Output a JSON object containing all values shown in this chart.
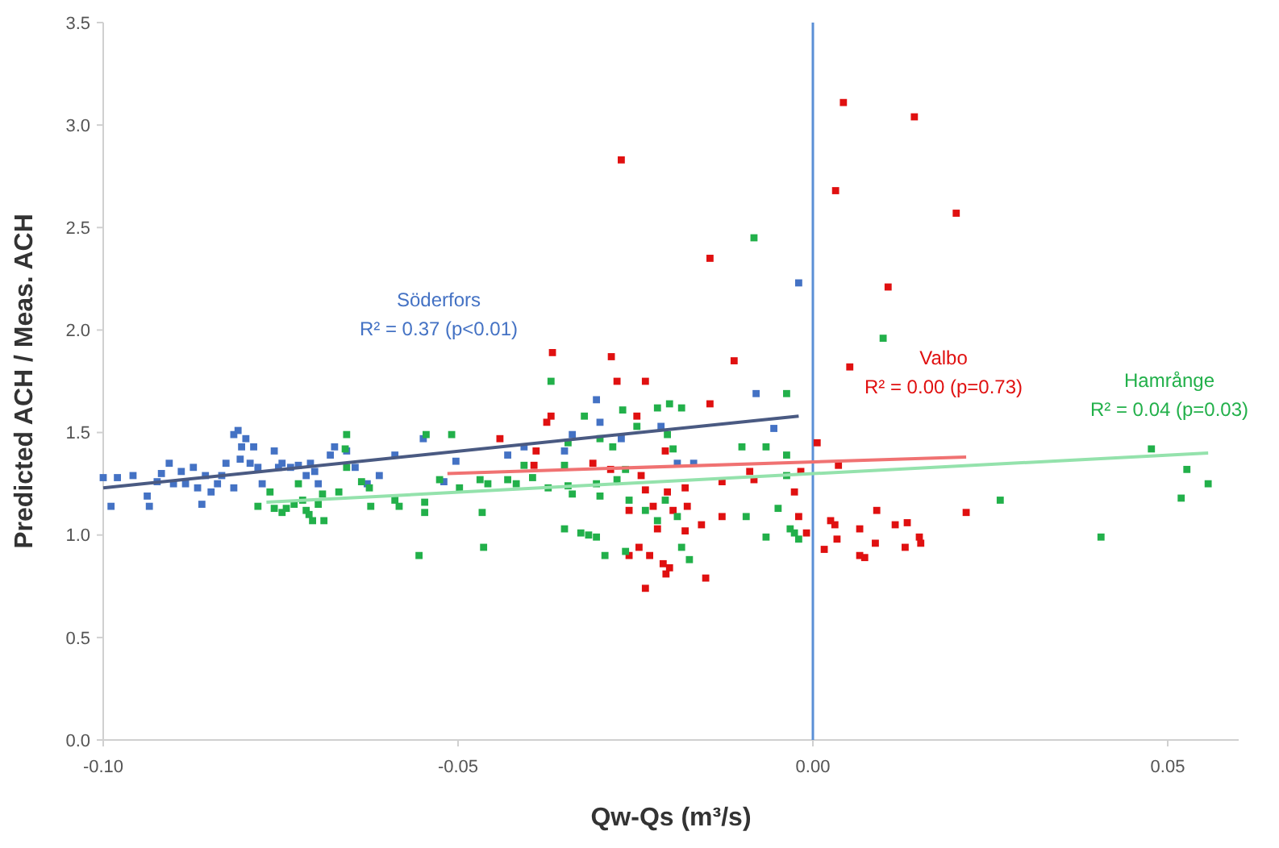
{
  "chart_data": {
    "type": "scatter",
    "xlabel": "Qw-Qs (m³/s)",
    "ylabel": "Predicted ACH / Meas. ACH",
    "xlim": [
      -0.1,
      0.06
    ],
    "ylim": [
      0,
      3.5
    ],
    "xticks": [
      {
        "value": -0.1,
        "label": "-0.10"
      },
      -0.05,
      {
        "value": 0,
        "label": "0.00"
      },
      0.05
    ],
    "yticks": [
      {
        "value": 0,
        "label": "0.0"
      },
      0.5,
      {
        "value": 1,
        "label": "1.0"
      },
      1.5,
      {
        "value": 2,
        "label": "2.0"
      },
      2.5,
      {
        "value": 3,
        "label": "3.0"
      },
      3.5
    ],
    "marker": "square",
    "ref_lines": [
      {
        "axis": "x",
        "value": 0,
        "color": "#5b8fd6"
      }
    ],
    "annotations": [
      "R² = 0.37 (p<0.01)",
      "R² = 0.00 (p=0.73)",
      "R² = 0.04 (p=0.03)"
    ],
    "series": [
      {
        "name": "Söderfors",
        "color": "#4472c4",
        "x": [
          -0.1,
          -0.098,
          -0.0989,
          -0.0958,
          -0.0938,
          -0.0935,
          -0.0924,
          -0.0918,
          -0.0907,
          -0.0901,
          -0.089,
          -0.0884,
          -0.0873,
          -0.0867,
          -0.0861,
          -0.0856,
          -0.0848,
          -0.0839,
          -0.0833,
          -0.0827,
          -0.0816,
          -0.081,
          -0.0805,
          -0.0799,
          -0.0807,
          -0.0793,
          -0.0788,
          -0.0782,
          -0.0776,
          -0.0816,
          -0.0759,
          -0.0753,
          -0.0748,
          -0.0736,
          -0.0725,
          -0.0714,
          -0.0708,
          -0.0702,
          -0.0697,
          -0.068,
          -0.0674,
          -0.0657,
          -0.0645,
          -0.0628,
          -0.0611,
          -0.0589,
          -0.0549,
          -0.052,
          -0.0503,
          -0.043,
          -0.0407,
          -0.035,
          -0.0339,
          -0.0305,
          -0.03,
          -0.027,
          -0.0214,
          -0.0191,
          -0.0168,
          -0.008,
          -0.0055,
          -0.002
        ],
        "values": [
          1.28,
          1.28,
          1.14,
          1.29,
          1.19,
          1.14,
          1.26,
          1.3,
          1.35,
          1.25,
          1.31,
          1.25,
          1.33,
          1.23,
          1.15,
          1.29,
          1.21,
          1.25,
          1.29,
          1.35,
          1.49,
          1.51,
          1.43,
          1.47,
          1.37,
          1.35,
          1.43,
          1.33,
          1.25,
          1.23,
          1.41,
          1.33,
          1.35,
          1.33,
          1.34,
          1.29,
          1.35,
          1.31,
          1.25,
          1.39,
          1.43,
          1.41,
          1.33,
          1.25,
          1.29,
          1.39,
          1.47,
          1.26,
          1.36,
          1.39,
          1.43,
          1.41,
          1.49,
          1.66,
          1.55,
          1.47,
          1.53,
          1.35,
          1.35,
          1.69,
          1.52,
          2.23
        ]
      },
      {
        "name": "Valbo",
        "color": "#e01010",
        "x": [
          -0.027,
          -0.0145,
          -0.0111,
          0.0043,
          0.0143,
          0.0032,
          0.0202,
          0.0106,
          0.0052,
          -0.0367,
          -0.0284,
          -0.0276,
          -0.0236,
          -0.0369,
          -0.0375,
          -0.0441,
          -0.039,
          -0.0393,
          -0.031,
          -0.0285,
          -0.0248,
          -0.0242,
          -0.0236,
          -0.0208,
          -0.0205,
          -0.018,
          -0.0145,
          -0.0128,
          -0.0089,
          -0.0083,
          -0.0026,
          0.0006,
          0.0036,
          -0.0259,
          -0.0225,
          -0.0219,
          -0.0197,
          -0.0177,
          -0.018,
          -0.0157,
          -0.0128,
          -0.0259,
          -0.0245,
          -0.023,
          -0.0211,
          -0.0207,
          -0.0202,
          -0.0236,
          -0.0151,
          -0.002,
          -0.0009,
          0.0025,
          0.0031,
          0.0016,
          0.0034,
          0.0066,
          0.0066,
          0.0073,
          0.0088,
          0.009,
          0.0116,
          0.0133,
          0.013,
          0.015,
          0.0152,
          0.0216,
          -0.0017
        ],
        "values": [
          2.83,
          2.35,
          1.85,
          3.11,
          3.04,
          2.68,
          2.57,
          2.21,
          1.82,
          1.89,
          1.87,
          1.75,
          1.75,
          1.58,
          1.55,
          1.47,
          1.41,
          1.34,
          1.35,
          1.32,
          1.58,
          1.29,
          1.22,
          1.41,
          1.21,
          1.23,
          1.64,
          1.26,
          1.31,
          1.27,
          1.21,
          1.45,
          1.34,
          1.12,
          1.14,
          1.03,
          1.12,
          1.14,
          1.02,
          1.05,
          1.09,
          0.9,
          0.94,
          0.9,
          0.86,
          0.81,
          0.84,
          0.74,
          0.79,
          1.09,
          1.01,
          1.07,
          1.05,
          0.93,
          0.98,
          1.03,
          0.9,
          0.89,
          0.96,
          1.12,
          1.05,
          1.06,
          0.94,
          0.99,
          0.96,
          1.11,
          1.31
        ]
      },
      {
        "name": "Hamrånge",
        "color": "#22b04a",
        "x": [
          -0.0083,
          0.0099,
          -0.0037,
          -0.0369,
          -0.0322,
          -0.0268,
          -0.0248,
          -0.0219,
          -0.0202,
          -0.0185,
          -0.0345,
          -0.03,
          -0.0282,
          -0.0205,
          -0.0197,
          -0.01,
          -0.0037,
          -0.0037,
          -0.0066,
          -0.0657,
          -0.0657,
          -0.0636,
          -0.0625,
          -0.0623,
          -0.0589,
          -0.0583,
          -0.0547,
          -0.0547,
          -0.0555,
          -0.0545,
          -0.0509,
          -0.0526,
          -0.0498,
          -0.0469,
          -0.0458,
          -0.0466,
          -0.0464,
          -0.043,
          -0.0418,
          -0.0407,
          -0.0395,
          -0.0373,
          -0.035,
          -0.0345,
          -0.0339,
          -0.035,
          -0.0327,
          -0.0316,
          -0.0305,
          -0.03,
          -0.0305,
          -0.0293,
          -0.0276,
          -0.0264,
          -0.0259,
          -0.0264,
          -0.0236,
          -0.0219,
          -0.0208,
          -0.0191,
          -0.0185,
          -0.0174,
          -0.0094,
          -0.0066,
          -0.0049,
          -0.0032,
          -0.0026,
          -0.002,
          -0.0782,
          -0.0765,
          -0.0759,
          -0.0748,
          -0.0742,
          -0.0731,
          -0.0725,
          -0.0719,
          -0.0714,
          -0.071,
          -0.0705,
          -0.0697,
          -0.0691,
          -0.0689,
          -0.0668,
          -0.0659,
          0.0264,
          0.0406,
          0.0477,
          0.0527,
          0.0519,
          0.0557
        ],
        "values": [
          2.45,
          1.96,
          1.69,
          1.75,
          1.58,
          1.61,
          1.53,
          1.62,
          1.64,
          1.62,
          1.45,
          1.47,
          1.43,
          1.49,
          1.42,
          1.43,
          1.39,
          1.29,
          1.43,
          1.49,
          1.33,
          1.26,
          1.23,
          1.14,
          1.17,
          1.14,
          1.11,
          1.16,
          0.9,
          1.49,
          1.49,
          1.27,
          1.23,
          1.27,
          1.25,
          1.11,
          0.94,
          1.27,
          1.25,
          1.34,
          1.28,
          1.23,
          1.34,
          1.24,
          1.2,
          1.03,
          1.01,
          1.0,
          1.25,
          1.19,
          0.99,
          0.9,
          1.27,
          1.32,
          1.17,
          0.92,
          1.12,
          1.07,
          1.17,
          1.09,
          0.94,
          0.88,
          1.09,
          0.99,
          1.13,
          1.03,
          1.01,
          0.98,
          1.14,
          1.21,
          1.13,
          1.11,
          1.13,
          1.15,
          1.25,
          1.17,
          1.12,
          1.1,
          1.07,
          1.15,
          1.2,
          1.07,
          1.21,
          1.42,
          1.17,
          0.99,
          1.42,
          1.32,
          1.18,
          1.25
        ]
      },
      {
        "type": "line",
        "marker": "none",
        "color": "#4a5a82",
        "x": [
          -0.1,
          -0.002
        ],
        "values": [
          1.23,
          1.58
        ]
      },
      {
        "type": "line",
        "marker": "none",
        "color": "#f07272",
        "x": [
          -0.0515,
          0.0216
        ],
        "values": [
          1.3,
          1.38
        ]
      },
      {
        "type": "line",
        "marker": "none",
        "color": "#94e2ac",
        "x": [
          -0.077,
          0.0557
        ],
        "values": [
          1.16,
          1.4
        ]
      }
    ]
  }
}
